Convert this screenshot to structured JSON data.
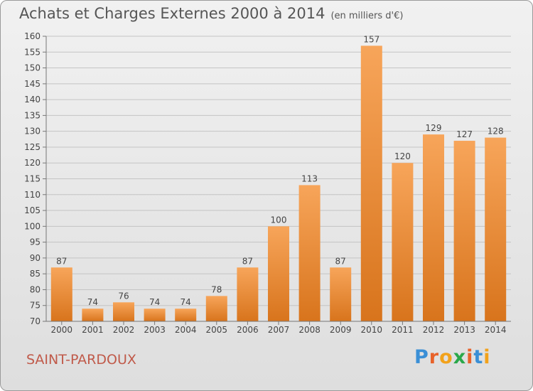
{
  "header": {
    "title": "Achats et Charges Externes 2000 à 2014",
    "unit": "(en milliers d'€)"
  },
  "footer": {
    "commune": "SAINT-PARDOUX",
    "brand": "Proxiti"
  },
  "colors": {
    "bar_light": "#f7a55a",
    "bar_dark": "#d8741c",
    "brand_letters": [
      "#3a8fd6",
      "#e8622a",
      "#f2a21b",
      "#2aa84a",
      "#e8622a",
      "#3a8fd6",
      "#f2a21b"
    ]
  },
  "chart_data": {
    "type": "bar",
    "title": "Achats et Charges Externes 2000 à 2014",
    "subtitle": "(en milliers d'€)",
    "categories": [
      "2000",
      "2001",
      "2002",
      "2003",
      "2004",
      "2005",
      "2006",
      "2007",
      "2008",
      "2009",
      "2010",
      "2011",
      "2012",
      "2013",
      "2014"
    ],
    "values": [
      87,
      74,
      76,
      74,
      74,
      78,
      87,
      100,
      113,
      87,
      157,
      120,
      129,
      127,
      128
    ],
    "ylim": [
      70,
      160
    ],
    "yticks": [
      70,
      75,
      80,
      85,
      90,
      95,
      100,
      105,
      110,
      115,
      120,
      125,
      130,
      135,
      140,
      145,
      150,
      155,
      160
    ],
    "grid": true,
    "xlabel": "",
    "ylabel": ""
  }
}
